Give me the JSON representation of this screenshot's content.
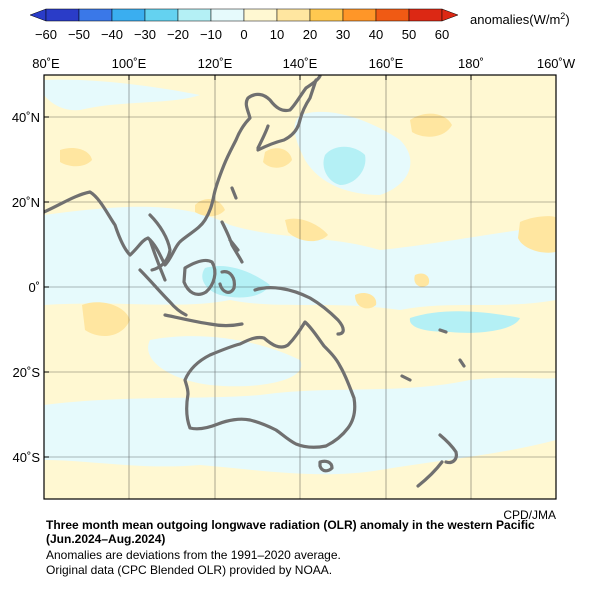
{
  "colorbar": {
    "ticks": [
      "−60",
      "−50",
      "−40",
      "−30",
      "−20",
      "−10",
      "0",
      "10",
      "20",
      "30",
      "40",
      "50",
      "60"
    ],
    "colors": [
      "#2a3cc8",
      "#3a78e8",
      "#3aaef0",
      "#64d2f0",
      "#b4f0f5",
      "#e6fafc",
      "#fff8d2",
      "#ffe6a0",
      "#ffc850",
      "#ff9628",
      "#f05a14",
      "#dc2814"
    ],
    "unit_prefix": "anomalies(W/m",
    "unit_sup": "2",
    "unit_suffix": ")"
  },
  "axes": {
    "x_ticks": [
      "80˚E",
      "100˚E",
      "120˚E",
      "140˚E",
      "160˚E",
      "180˚",
      "160˚W"
    ],
    "y_ticks": [
      "40˚N",
      "20˚N",
      "0˚",
      "20˚S",
      "40˚S"
    ]
  },
  "credit": "CPD/JMA",
  "caption": {
    "title": "Three month mean outgoing longwave radiation (OLR) anomaly in the western Pacific",
    "period": "(Jun.2024–Aug.2024)",
    "note1": "Anomalies are deviations from the 1991–2020 average.",
    "note2": "Original data (CPC Blended OLR) provided by NOAA."
  },
  "colors": {
    "light_blue": "#e6fafc",
    "cyan": "#b4f0f5",
    "cream": "#fff8d2",
    "light_orange": "#ffe6a0",
    "coast": "#707070"
  }
}
